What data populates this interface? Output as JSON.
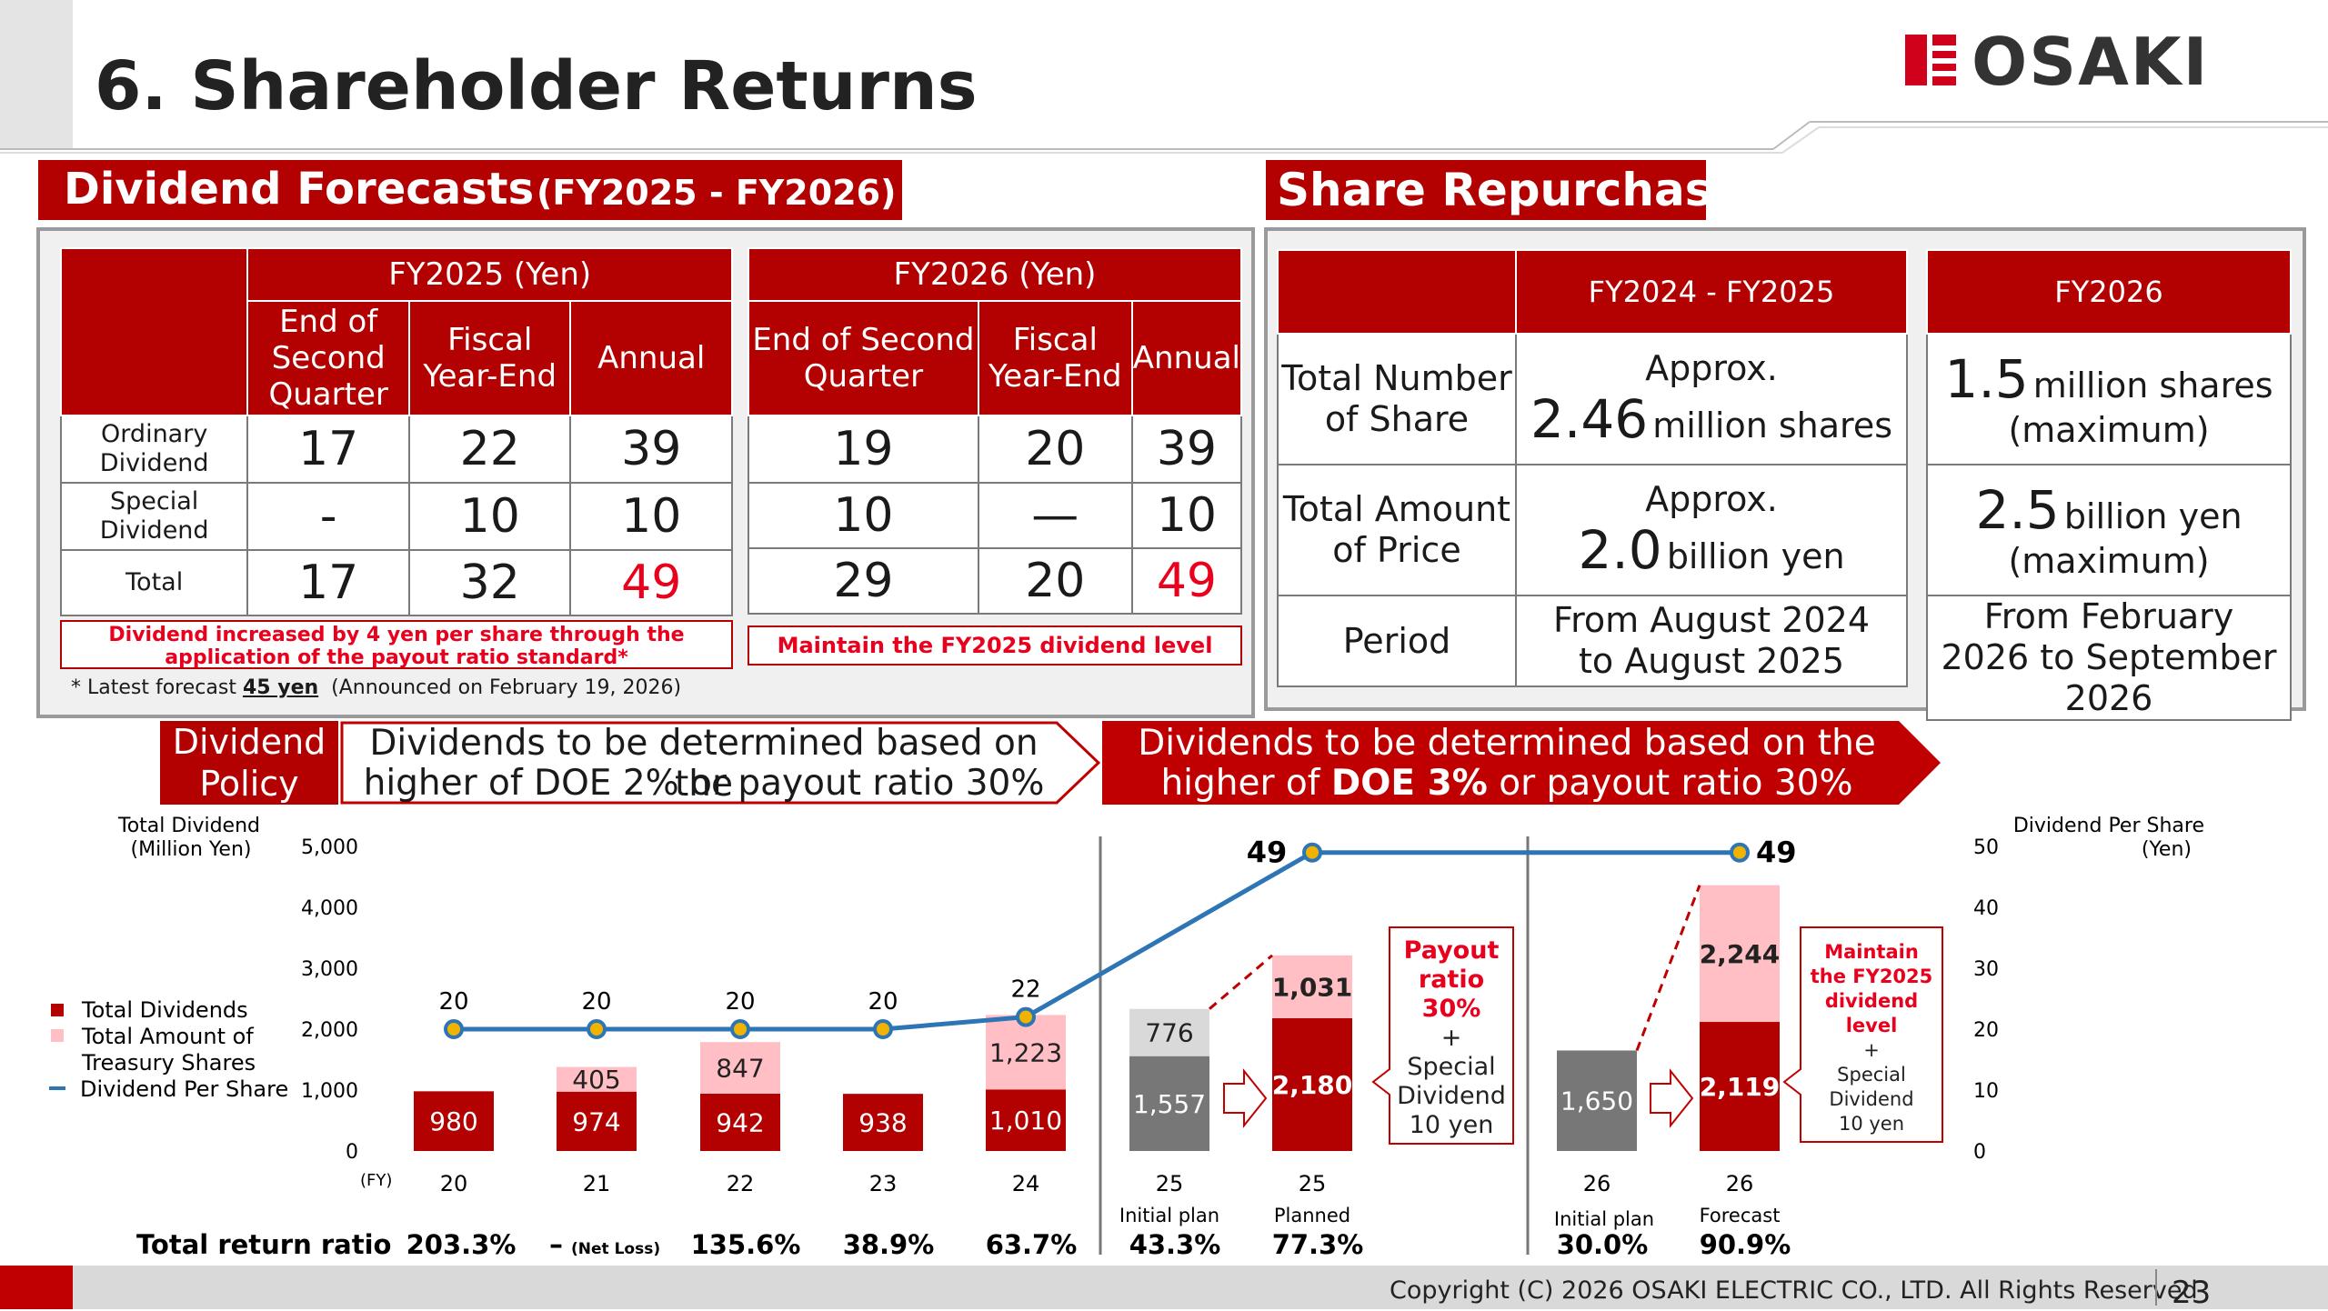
{
  "header": {
    "title": "6. Shareholder Returns",
    "logo_text": "OSAKI",
    "accent_color": "#b30000"
  },
  "dividend_forecasts": {
    "title": "Dividend Forecasts",
    "period": "(FY2025 - FY2026)",
    "fy2025": {
      "header": "FY2025 (Yen)",
      "col_q2": "End of Second Quarter",
      "col_fy": "Fiscal Year-End",
      "col_annual": "Annual",
      "ordinary": [
        "17",
        "22",
        "39"
      ],
      "special": [
        "-",
        "10",
        "10"
      ],
      "total": [
        "17",
        "32",
        "49"
      ],
      "note": "Dividend increased by 4 yen per share through the application of the payout ratio standard*"
    },
    "fy2026": {
      "header": "FY2026 (Yen)",
      "col_q2": "End of Second Quarter",
      "col_fy": "Fiscal Year-End",
      "col_annual": "Annual",
      "ordinary": [
        "19",
        "20",
        "39"
      ],
      "special": [
        "10",
        "—",
        "10"
      ],
      "total": [
        "29",
        "20",
        "49"
      ],
      "note": "Maintain the FY2025 dividend level"
    },
    "row_ordinary": "Ordinary Dividend",
    "row_special": "Special Dividend",
    "row_total": "Total",
    "footnote_pre": "* Latest forecast",
    "footnote_value": "45 yen",
    "footnote_post": "(Announced on February 19, 2026)"
  },
  "share_repurchase": {
    "title": "Share Repurchase",
    "col1": "FY2024 - FY2025",
    "col2": "FY2026",
    "row1_label": "Total Number of Share",
    "row2_label": "Total Amount of Price",
    "row3_label": "Period",
    "c1_r1_pre": "Approx.",
    "c1_r1_num": "2.46",
    "c1_r1_unit": "million shares",
    "c1_r2_pre": "Approx.",
    "c1_r2_num": "2.0",
    "c1_r2_unit": "billion yen",
    "c1_r3": "From August 2024 to August 2025",
    "c2_r1_num": "1.5",
    "c2_r1_unit": "million shares",
    "c2_r1_post": "(maximum)",
    "c2_r2_num": "2.5",
    "c2_r2_unit": "billion yen",
    "c2_r2_post": "(maximum)",
    "c2_r3": "From February 2026 to September 2026"
  },
  "policy": {
    "label": "Dividend Policy",
    "current_l1": "Dividends to be determined based on the",
    "current_l2": "higher of DOE 2% or payout ratio 30%",
    "new_l1": "Dividends to be determined based on the",
    "new_l2_pre": "higher of ",
    "new_l2_bold": "DOE 3%",
    "new_l2_post": " or payout ratio 30%"
  },
  "chart_data": {
    "type": "bar",
    "left_axis_label": "Total Dividend (Million Yen)",
    "right_axis_label": "Dividend Per Share (Yen)",
    "left_ylim": [
      0,
      5000
    ],
    "left_ticks": [
      "0",
      "1,000",
      "2,000",
      "3,000",
      "4,000",
      "5,000"
    ],
    "right_ylim": [
      0,
      50
    ],
    "right_ticks": [
      "0",
      "10",
      "20",
      "30",
      "40",
      "50"
    ],
    "fy_label": "(FY)",
    "legend": [
      "Total Dividends",
      "Total Amount of Treasury Shares",
      "Dividend Per Share"
    ],
    "categories": [
      {
        "label": "20",
        "sub": "",
        "dividends": 980,
        "treasury": null,
        "dps": 20,
        "ratio": "203.3%",
        "kind": "actual"
      },
      {
        "label": "21",
        "sub": "",
        "dividends": 974,
        "treasury": 405,
        "dps": 20,
        "ratio": "–",
        "ratio_note": "(Net Loss)",
        "kind": "actual"
      },
      {
        "label": "22",
        "sub": "",
        "dividends": 942,
        "treasury": 847,
        "dps": 20,
        "ratio": "135.6%",
        "kind": "actual"
      },
      {
        "label": "23",
        "sub": "",
        "dividends": 938,
        "treasury": null,
        "dps": 20,
        "ratio": "38.9%",
        "kind": "actual"
      },
      {
        "label": "24",
        "sub": "",
        "dividends": 1010,
        "treasury": 1223,
        "dps": 22,
        "ratio": "63.7%",
        "kind": "actual"
      },
      {
        "label": "25",
        "sub": "Initial plan",
        "dividends": 1557,
        "treasury": 776,
        "dps": null,
        "ratio": "43.3%",
        "kind": "plan"
      },
      {
        "label": "25",
        "sub": "Planned",
        "dividends": 2180,
        "treasury": 1031,
        "dps": 49,
        "ratio": "77.3%",
        "kind": "actual"
      },
      {
        "label": "26",
        "sub": "Initial plan",
        "dividends": 1650,
        "treasury": null,
        "dps": null,
        "ratio": "30.0%",
        "kind": "plan"
      },
      {
        "label": "26",
        "sub": "Forecast",
        "dividends": 2119,
        "treasury": 2244,
        "dps": 49,
        "ratio": "90.9%",
        "kind": "actual"
      }
    ],
    "labels": {
      "dividends": [
        "980",
        "974",
        "942",
        "938",
        "1,010",
        "1,557",
        "2,180",
        "1,650",
        "2,119"
      ],
      "treasury": [
        "",
        "405",
        "847",
        "",
        "1,223",
        "776",
        "1,031",
        "",
        "2,244"
      ],
      "dps": [
        "20",
        "20",
        "20",
        "20",
        "22",
        "",
        "49",
        "",
        "49"
      ]
    },
    "total_return_label": "Total return ratio",
    "callout1": [
      "Payout",
      "ratio",
      "30%",
      "+",
      "Special",
      "Dividend",
      "10 yen"
    ],
    "callout2": [
      "Maintain",
      "the FY2025",
      "dividend",
      "level",
      "+",
      "Special",
      "Dividend",
      "10 yen"
    ],
    "colors": {
      "dividends": "#b30000",
      "treasury": "#ffbfc4",
      "plan": "#777777",
      "plan_top": "#d9d9d9",
      "line": "#2e75b6",
      "marker": "#f0b400"
    }
  },
  "footer": {
    "copyright": "Copyright (C) 2026 OSAKI ELECTRIC CO., LTD. All Rights Reserved",
    "page": "23"
  }
}
